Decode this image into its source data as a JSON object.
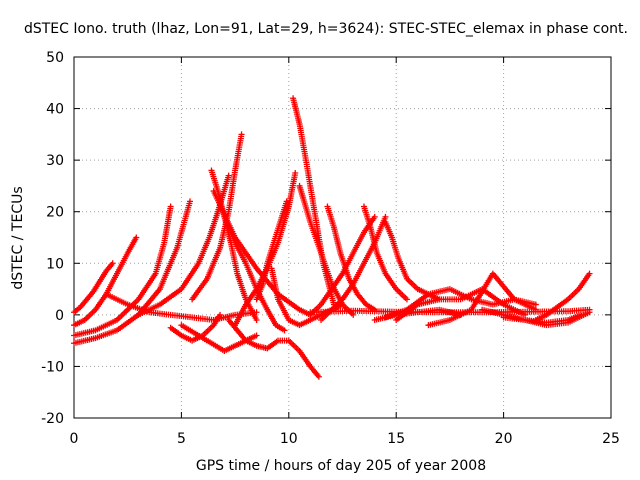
{
  "chart_data": {
    "type": "scatter",
    "title": "dSTEC Iono. truth (lhaz, Lon=91, Lat=29, h=3624): STEC-STEC_elemax in phase cont.",
    "xlabel": "GPS time / hours of day 205 of year 2008",
    "ylabel": "dSTEC  / TECUs",
    "xlim": [
      0,
      25
    ],
    "ylim": [
      -20,
      50
    ],
    "xticks": [
      0,
      5,
      10,
      15,
      20,
      25
    ],
    "yticks": [
      -20,
      -10,
      0,
      10,
      20,
      30,
      40,
      50
    ],
    "grid": true,
    "marker": "+",
    "colors": {
      "series": "#ff0000",
      "grid": "#a0a0a0",
      "axis": "#000000"
    },
    "series": [
      {
        "x": [
          0.0,
          0.3,
          0.6,
          0.9,
          1.2,
          1.5,
          1.8
        ],
        "y": [
          0.5,
          1.5,
          3,
          4.5,
          6.5,
          8.5,
          10
        ]
      },
      {
        "x": [
          0.0,
          0.5,
          1.0,
          1.5,
          2.0,
          2.5,
          2.9
        ],
        "y": [
          -2,
          -1,
          1,
          4,
          8,
          12,
          15
        ]
      },
      {
        "x": [
          0.0,
          1.0,
          2.0,
          3.0,
          3.8,
          4.2,
          4.5
        ],
        "y": [
          -4,
          -3,
          -1,
          3,
          8,
          14,
          21
        ]
      },
      {
        "x": [
          0.0,
          1.0,
          2.0,
          3.0,
          4.0,
          4.8,
          5.4
        ],
        "y": [
          -5.5,
          -4.5,
          -3,
          0,
          5,
          13,
          22
        ]
      },
      {
        "x": [
          1.5,
          2.5,
          3.5,
          4.5,
          5.5,
          6.5,
          7.5,
          8.5
        ],
        "y": [
          4,
          2,
          0.5,
          0,
          -0.5,
          -1,
          0,
          0.5
        ]
      },
      {
        "x": [
          4.5,
          5.0,
          5.5,
          6.0,
          6.5,
          6.8
        ],
        "y": [
          -2.5,
          -4,
          -5,
          -4,
          -2,
          0
        ]
      },
      {
        "x": [
          3.0,
          4.0,
          5.0,
          5.8,
          6.3,
          6.7,
          7.2
        ],
        "y": [
          0,
          2,
          5,
          10,
          15,
          20,
          27
        ]
      },
      {
        "x": [
          5.5,
          6.2,
          6.8,
          7.2,
          7.5,
          7.8
        ],
        "y": [
          3,
          7,
          13,
          20,
          28,
          35
        ]
      },
      {
        "x": [
          6.4,
          6.7,
          7.0,
          7.3,
          7.6,
          8.0,
          8.5
        ],
        "y": [
          28,
          24,
          19,
          14,
          8,
          3,
          -1
        ]
      },
      {
        "x": [
          7.0,
          7.5,
          8.0,
          8.5,
          9.0,
          9.4,
          9.8
        ],
        "y": [
          19,
          14,
          10,
          5,
          1,
          -2,
          -3
        ]
      },
      {
        "x": [
          6.5,
          7.5,
          8.5,
          9.5,
          10.5,
          11.0
        ],
        "y": [
          24,
          15,
          9,
          4,
          1,
          0
        ]
      },
      {
        "x": [
          5.0,
          6.0,
          7.0,
          7.5,
          8.0,
          8.5
        ],
        "y": [
          -2,
          -4.5,
          -7,
          -6,
          -5,
          -4
        ]
      },
      {
        "x": [
          7.2,
          7.6,
          8.0,
          8.5,
          9.0,
          9.5,
          10.0,
          10.5,
          11.0,
          11.4
        ],
        "y": [
          -1,
          -3,
          -5,
          -6,
          -6.5,
          -5,
          -5,
          -7,
          -10,
          -12
        ]
      },
      {
        "x": [
          7.5,
          8.0,
          8.5,
          9.0,
          9.5,
          10.0,
          10.3
        ],
        "y": [
          -2,
          2,
          5,
          9,
          14,
          21,
          27.5
        ]
      },
      {
        "x": [
          8.5,
          8.8,
          9.0,
          9.3,
          9.6,
          9.9
        ],
        "y": [
          3,
          6,
          10,
          14,
          18,
          22
        ]
      },
      {
        "x": [
          10.2,
          10.5,
          10.8,
          11.2,
          11.6,
          12.1
        ],
        "y": [
          42,
          37,
          30,
          20,
          10,
          2
        ]
      },
      {
        "x": [
          10.5,
          11.0,
          11.5,
          12.0,
          12.5,
          13.0
        ],
        "y": [
          25,
          18,
          12,
          6,
          2,
          0
        ]
      },
      {
        "x": [
          9.2,
          9.5,
          10.0,
          10.5,
          11.0,
          11.5,
          12.0,
          12.5
        ],
        "y": [
          9,
          3,
          -1,
          -2,
          -1,
          0,
          1,
          2
        ]
      },
      {
        "x": [
          11.8,
          12.1,
          12.4,
          12.8,
          13.2,
          13.6,
          14.0
        ],
        "y": [
          21,
          17,
          12,
          7,
          4,
          2,
          1
        ]
      },
      {
        "x": [
          11.0,
          11.5,
          12.0,
          12.5,
          13.0,
          13.5,
          14.0
        ],
        "y": [
          0,
          2,
          5,
          8,
          12,
          16,
          19
        ]
      },
      {
        "x": [
          11.5,
          12.0,
          12.5,
          13.0,
          13.5,
          14.0,
          14.5
        ],
        "y": [
          -1,
          1,
          3,
          6,
          10,
          14,
          19
        ]
      },
      {
        "x": [
          13.5,
          13.8,
          14.1,
          14.5,
          15.0,
          15.5
        ],
        "y": [
          21,
          17,
          12,
          8,
          5,
          3
        ]
      },
      {
        "x": [
          14.5,
          14.8,
          15.1,
          15.5,
          16.0,
          16.5,
          17.0
        ],
        "y": [
          18,
          15,
          11,
          7,
          5,
          4,
          3
        ]
      },
      {
        "x": [
          11.0,
          13.0,
          15.0,
          17.0,
          19.0,
          21.0,
          23.0,
          24.0
        ],
        "y": [
          0.5,
          0.8,
          0.6,
          0.5,
          0.5,
          0.6,
          0.7,
          1
        ]
      },
      {
        "x": [
          14.5,
          15.5,
          16.5,
          17.5,
          18.5,
          19.5,
          20.5,
          21.5
        ],
        "y": [
          -0.5,
          1,
          4,
          5,
          3,
          2,
          3,
          2
        ]
      },
      {
        "x": [
          15.0,
          16.0,
          17.0,
          18.0,
          19.0,
          20.0,
          21.0
        ],
        "y": [
          -1,
          2,
          3,
          3,
          5,
          2,
          0
        ]
      },
      {
        "x": [
          16.5,
          17.5,
          18.5,
          19.5,
          20.5,
          21.5
        ],
        "y": [
          -2,
          -1,
          1,
          8,
          3,
          1
        ]
      },
      {
        "x": [
          14.0,
          15.0,
          16.0,
          17.0,
          18.0
        ],
        "y": [
          -1,
          0,
          0.5,
          1,
          0
        ]
      },
      {
        "x": [
          19.0,
          20.0,
          21.0,
          22.0,
          23.0,
          23.6
        ],
        "y": [
          1,
          0,
          -1,
          -1.5,
          -1,
          0
        ]
      },
      {
        "x": [
          20.0,
          21.0,
          22.0,
          23.0,
          24.0
        ],
        "y": [
          -0.5,
          -1,
          -2,
          -1.5,
          0.5
        ]
      },
      {
        "x": [
          21.5,
          22.0,
          22.5,
          23.0,
          23.5,
          24.0
        ],
        "y": [
          -1,
          0,
          1.5,
          3,
          5,
          8
        ]
      }
    ]
  }
}
